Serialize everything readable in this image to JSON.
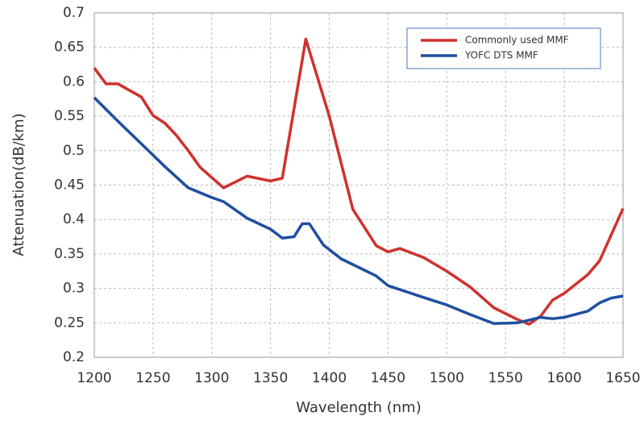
{
  "chart_data": {
    "type": "line",
    "xlabel": "Wavelength (nm)",
    "ylabel": "Attenuation(dB/km)",
    "xlim": [
      1200,
      1650
    ],
    "ylim": [
      0.2,
      0.7
    ],
    "xticks": [
      1200,
      1250,
      1300,
      1350,
      1400,
      1450,
      1500,
      1550,
      1600,
      1650
    ],
    "yticks": [
      0.2,
      0.25,
      0.3,
      0.35,
      0.4,
      0.45,
      0.5,
      0.55,
      0.6,
      0.65,
      0.7
    ],
    "grid": true,
    "legend": "upper right",
    "series": [
      {
        "name": "Commonly used MMF",
        "color": "#d0312d",
        "x": [
          1200,
          1210,
          1220,
          1240,
          1250,
          1260,
          1270,
          1280,
          1290,
          1310,
          1330,
          1350,
          1360,
          1380,
          1400,
          1420,
          1440,
          1450,
          1460,
          1480,
          1500,
          1520,
          1540,
          1560,
          1570,
          1580,
          1590,
          1600,
          1620,
          1630,
          1650
        ],
        "values": [
          0.62,
          0.597,
          0.597,
          0.578,
          0.551,
          0.54,
          0.522,
          0.5,
          0.476,
          0.446,
          0.463,
          0.456,
          0.46,
          0.662,
          0.55,
          0.415,
          0.362,
          0.353,
          0.358,
          0.345,
          0.325,
          0.302,
          0.272,
          0.255,
          0.248,
          0.26,
          0.283,
          0.293,
          0.32,
          0.34,
          0.416
        ]
      },
      {
        "name": "YOFC DTS MMF",
        "color": "#1f4fa0",
        "x": [
          1200,
          1220,
          1240,
          1260,
          1280,
          1300,
          1310,
          1330,
          1350,
          1360,
          1370,
          1377,
          1383,
          1395,
          1410,
          1440,
          1450,
          1480,
          1500,
          1520,
          1540,
          1560,
          1580,
          1590,
          1600,
          1620,
          1630,
          1640,
          1650
        ],
        "values": [
          0.577,
          0.543,
          0.51,
          0.477,
          0.446,
          0.432,
          0.426,
          0.402,
          0.386,
          0.373,
          0.375,
          0.394,
          0.394,
          0.363,
          0.343,
          0.318,
          0.304,
          0.287,
          0.276,
          0.262,
          0.249,
          0.25,
          0.258,
          0.256,
          0.258,
          0.267,
          0.279,
          0.286,
          0.289
        ]
      }
    ]
  }
}
